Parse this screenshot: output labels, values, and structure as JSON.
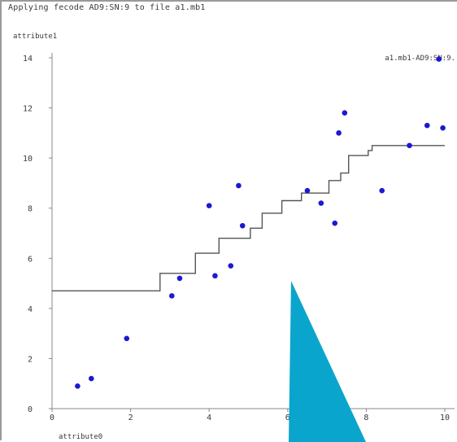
{
  "status_text": "Applying fecode AD9:SN:9 to file a1.mb1",
  "colors": {
    "points": "#1a1ad0",
    "step_line": "#555555",
    "axis": "#888888",
    "overlay_shape": "#0aa5cc",
    "background": "#ffffff"
  },
  "chart_data": {
    "type": "scatter",
    "xlabel": "attribute0",
    "ylabel": "attribute1",
    "xlim": [
      0,
      10
    ],
    "ylim": [
      0,
      14
    ],
    "x_ticks": [
      "0",
      "2",
      "4",
      "6",
      "8",
      "10"
    ],
    "y_ticks": [
      "0",
      "2",
      "4",
      "6",
      "8",
      "10",
      "12",
      "14"
    ],
    "legend_label": "a1.mb1-AD9:SN:9.",
    "grid": false,
    "points": [
      {
        "x": 0.65,
        "y": 0.9
      },
      {
        "x": 1.0,
        "y": 1.2
      },
      {
        "x": 1.9,
        "y": 2.8
      },
      {
        "x": 3.05,
        "y": 4.5
      },
      {
        "x": 3.25,
        "y": 5.2
      },
      {
        "x": 4.0,
        "y": 8.1
      },
      {
        "x": 4.15,
        "y": 5.3
      },
      {
        "x": 4.55,
        "y": 5.7
      },
      {
        "x": 4.75,
        "y": 8.9
      },
      {
        "x": 4.85,
        "y": 7.3
      },
      {
        "x": 6.5,
        "y": 8.7
      },
      {
        "x": 6.85,
        "y": 8.2
      },
      {
        "x": 7.2,
        "y": 7.4
      },
      {
        "x": 7.3,
        "y": 11.0
      },
      {
        "x": 7.45,
        "y": 11.8
      },
      {
        "x": 8.4,
        "y": 8.7
      },
      {
        "x": 9.1,
        "y": 10.5
      },
      {
        "x": 9.55,
        "y": 11.3
      },
      {
        "x": 9.95,
        "y": 11.2
      },
      {
        "x": 9.85,
        "y": 13.95
      }
    ],
    "step_fit": [
      [
        0,
        4.7
      ],
      [
        2.75,
        4.7
      ],
      [
        2.75,
        5.4
      ],
      [
        3.65,
        5.4
      ],
      [
        3.65,
        6.2
      ],
      [
        4.25,
        6.2
      ],
      [
        4.25,
        6.8
      ],
      [
        5.05,
        6.8
      ],
      [
        5.05,
        7.2
      ],
      [
        5.35,
        7.2
      ],
      [
        5.35,
        7.8
      ],
      [
        5.85,
        7.8
      ],
      [
        5.85,
        8.3
      ],
      [
        6.35,
        8.3
      ],
      [
        6.35,
        8.6
      ],
      [
        7.05,
        8.6
      ],
      [
        7.05,
        9.1
      ],
      [
        7.35,
        9.1
      ],
      [
        7.35,
        9.4
      ],
      [
        7.55,
        9.4
      ],
      [
        7.55,
        10.1
      ],
      [
        8.05,
        10.1
      ],
      [
        8.05,
        10.3
      ],
      [
        8.15,
        10.3
      ],
      [
        8.15,
        10.5
      ],
      [
        10,
        10.5
      ]
    ]
  }
}
